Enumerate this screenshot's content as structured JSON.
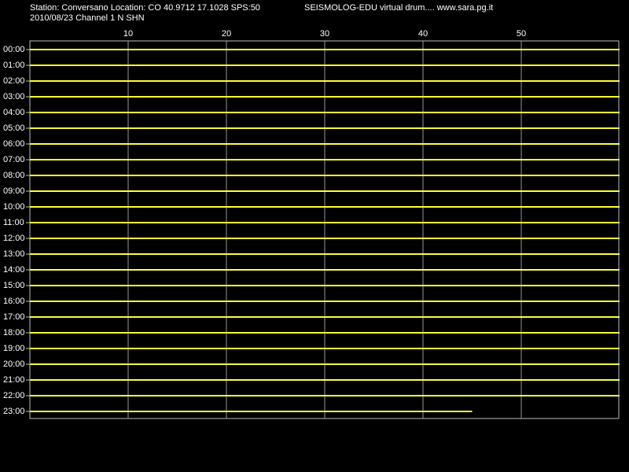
{
  "chart_data": {
    "type": "drum",
    "title": "Station: Conversano Location: CO 40.9712 17.1028 SPS:50",
    "subtitle": "2010/08/23  Channel 1 N SHN",
    "annotation": "SEISMOLOG-EDU virtual drum.... www.sara.pg.it",
    "categories": [
      "00:00",
      "01:00",
      "02:00",
      "03:00",
      "04:00",
      "05:00",
      "06:00",
      "07:00",
      "08:00",
      "09:00",
      "10:00",
      "11:00",
      "12:00",
      "13:00",
      "14:00",
      "15:00",
      "16:00",
      "17:00",
      "18:00",
      "19:00",
      "20:00",
      "21:00",
      "22:00",
      "23:00"
    ],
    "values": [
      60,
      60,
      60,
      60,
      60,
      60,
      60,
      60,
      60,
      60,
      60,
      60,
      60,
      60,
      60,
      60,
      60,
      60,
      60,
      60,
      60,
      60,
      60,
      45
    ],
    "color": "#ffff33",
    "xlim": [
      0,
      60
    ],
    "xticks": [
      10,
      20,
      30,
      40,
      50
    ],
    "grid": true
  }
}
